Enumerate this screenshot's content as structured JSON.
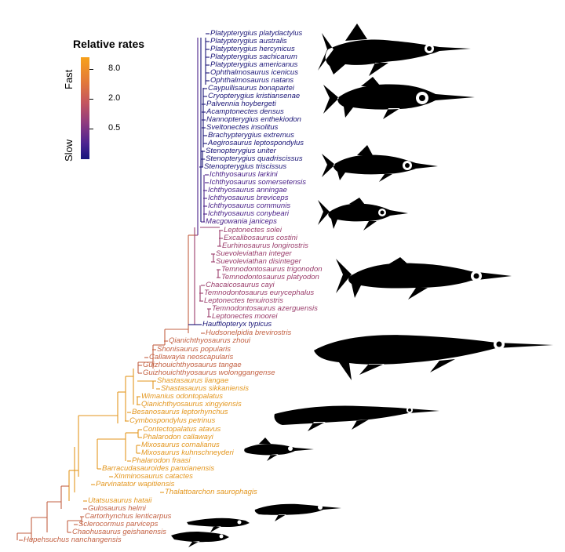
{
  "legend": {
    "title": "Relative rates",
    "fast_label": "Fast",
    "slow_label": "Slow",
    "ticks": [
      "8.0",
      "2.0",
      "0.5"
    ]
  },
  "colors": {
    "slow": "#1a1577",
    "medium_slow": "#4a2189",
    "medium": "#9a3d6b",
    "medium_fast": "#c36143",
    "fast": "#e3961e"
  },
  "taxa": [
    "Platypterygius platydactylus",
    "Platypterygius australis",
    "Platypterygius hercynicus",
    "Platypterygius sachicarum",
    "Platypterygius americanus",
    "Ophthalmosaurus icenicus",
    "Ophthalmosaurus natans",
    "Caypullisaurus bonapartei",
    "Cryopterygius kristiansenae",
    "Palvennia hoybergeti",
    "Acamptonectes densus",
    "Nannopterygius enthekiodon",
    "Sveltonectes insolitus",
    "Brachypterygius extremus",
    "Aegirosaurus leptospondylus",
    "Stenopterygius uniter",
    "Stenopterygius quadriscissus",
    "Stenopterygius triscissus",
    "Ichthyosaurus larkini",
    "Ichthyosaurus somersetensis",
    "Ichthyosaurus anningae",
    "Ichthyosaurus breviceps",
    "Ichthyosaurus communis",
    "Ichthyosaurus conybeari",
    "Macgowania janiceps",
    "Leptonectes solei",
    "Excalibosaurus costini",
    "Eurhinosaurus longirostris",
    "Suevoleviathan integer",
    "Suevoleviathan disinteger",
    "Temnodontosaurus trigonodon",
    "Temnodontosaurus platyodon",
    "Chacaicosaurus cayi",
    "Temnodontosaurus eurycephalus",
    "Leptonectes tenuirostris",
    "Temnodontosaurus azerguensis",
    "Leptonectes moorei",
    "Hauffiopteryx typicus",
    "Hudsonelpidia brevirostris",
    "Qianichthyosaurus zhoui",
    "Shonisaurus popularis",
    "Callawayia neoscapularis",
    "Guizhouichthyosaurus tangae",
    "Guizhouichthyosaurus wolonggangense",
    "Shastasaurus liangae",
    "Shastasaurus sikkaniensis",
    "Wimanius odontopalatus",
    "Qianichthyosaurus xingyiensis",
    "Besanosaurus leptorhynchus",
    "Cymbospondylus petrinus",
    "Contectopalatus atavus",
    "Phalarodon callawayi",
    "Mixosaurus cornalianus",
    "Mixosaurus kuhnschneyderi",
    "Phalarodon fraasi",
    "Barracudasauroides panxianensis",
    "Xinminosaurus catactes",
    "Parvinatator wapitiensis",
    "Thalattoarchon saurophagis",
    "Utatsusaurus hataii",
    "Gulosaurus helmi",
    "Cartorhynchus lenticarpus",
    "Sclerocormus parviceps",
    "Chaohusaurus geishanensis",
    "Hupehsuchus nanchangensis"
  ],
  "silhouettes": [
    "ophthalmosaurid-silhouette",
    "platypterygiine-silhouette",
    "stenopterygius-silhouette",
    "ichthyosaurus-silhouette",
    "temnodontosaurus-silhouette",
    "shonisaurus-silhouette",
    "cymbospondylus-silhouette",
    "mixosaurus-silhouette",
    "utatsusaurus-silhouette",
    "cartorhynchus-silhouette",
    "hupehsuchus-silhouette"
  ]
}
